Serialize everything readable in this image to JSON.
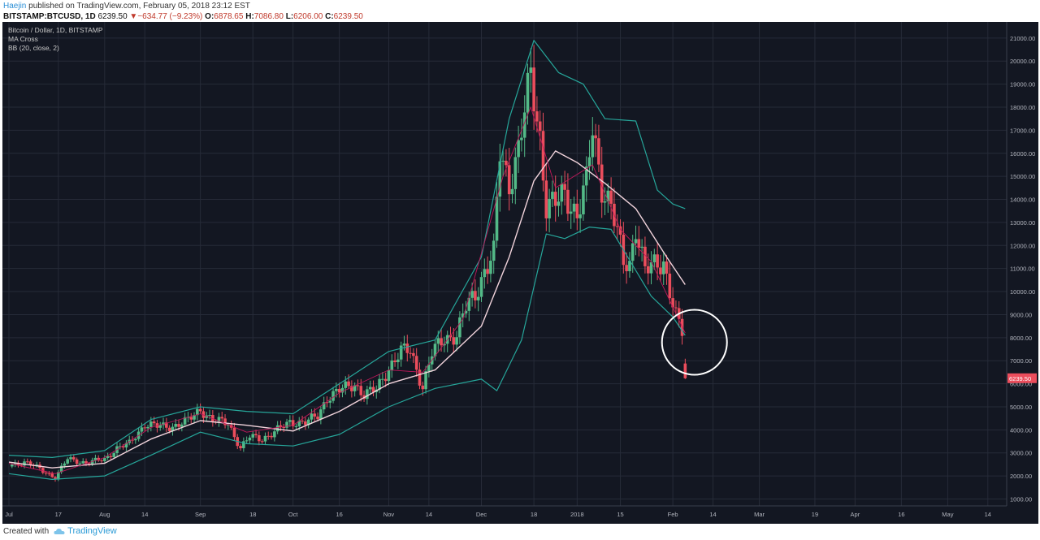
{
  "header": {
    "author": "Haejin",
    "published": "published on TradingView.com, February 05, 2018 23:12 EST",
    "symbol": "BITSTAMP:BTCUSD, 1D",
    "last": "6239.50",
    "change": "−634.77 (−9.23%)",
    "o_label": "O:",
    "o_value": "6878.65",
    "h_label": "H:",
    "h_value": "7086.80",
    "l_label": "L:",
    "l_value": "6206.00",
    "c_label": "C:",
    "c_value": "6239.50"
  },
  "legend": {
    "line1": "Bitcoin / Dollar, 1D, BITSTAMP",
    "line2": "MA Cross",
    "line3": "BB (20, close, 2)"
  },
  "footer": {
    "created_with": "Created with",
    "brand": "TradingView"
  },
  "colors": {
    "bg": "#131722",
    "up": "#53b987",
    "down": "#eb4d5c",
    "bb": "#26a69a",
    "ma_slow": "#f2d4dc",
    "ma_fast": "#c2185b",
    "grid": "#262b38",
    "axis_text": "#b2b5be",
    "price_tag": "#eb4d5c",
    "circle": "#ffffff"
  },
  "chart_data": {
    "type": "candlestick",
    "ylim": [
      700,
      21700
    ],
    "y_ticks": [
      1000,
      2000,
      3000,
      4000,
      5000,
      6000,
      7000,
      8000,
      9000,
      10000,
      11000,
      12000,
      13000,
      14000,
      15000,
      16000,
      17000,
      18000,
      19000,
      20000,
      21000
    ],
    "y_tick_labels": [
      "1000.00",
      "2000.00",
      "3000.00",
      "4000.00",
      "5000.00",
      "6000.00",
      "7000.00",
      "8000.00",
      "9000.00",
      "10000.00",
      "11000.00",
      "12000.00",
      "13000.00",
      "14000.00",
      "15000.00",
      "16000.00",
      "17000.00",
      "18000.00",
      "19000.00",
      "20000.00",
      "21000.00"
    ],
    "x_range": [
      "2017-07-01",
      "2018-05-18"
    ],
    "x_ticks": [
      {
        "date": "2017-07-01",
        "label": "Jul"
      },
      {
        "date": "2017-07-17",
        "label": "17"
      },
      {
        "date": "2017-08-01",
        "label": "Aug"
      },
      {
        "date": "2017-08-14",
        "label": "14"
      },
      {
        "date": "2017-09-01",
        "label": "Sep"
      },
      {
        "date": "2017-09-18",
        "label": "18"
      },
      {
        "date": "2017-10-01",
        "label": "Oct"
      },
      {
        "date": "2017-10-16",
        "label": "16"
      },
      {
        "date": "2017-11-01",
        "label": "Nov"
      },
      {
        "date": "2017-11-14",
        "label": "14"
      },
      {
        "date": "2017-12-01",
        "label": "Dec"
      },
      {
        "date": "2017-12-18",
        "label": "18"
      },
      {
        "date": "2018-01-01",
        "label": "2018"
      },
      {
        "date": "2018-01-15",
        "label": "15"
      },
      {
        "date": "2018-02-01",
        "label": "Feb"
      },
      {
        "date": "2018-02-14",
        "label": "14"
      },
      {
        "date": "2018-03-01",
        "label": "Mar"
      },
      {
        "date": "2018-03-19",
        "label": "19"
      },
      {
        "date": "2018-04-01",
        "label": "Apr"
      },
      {
        "date": "2018-04-16",
        "label": "16"
      },
      {
        "date": "2018-05-01",
        "label": "May"
      },
      {
        "date": "2018-05-14",
        "label": "14"
      }
    ],
    "close_series": [
      {
        "date": "2017-07-01",
        "close": 2480
      },
      {
        "date": "2017-07-06",
        "close": 2600
      },
      {
        "date": "2017-07-10",
        "close": 2380
      },
      {
        "date": "2017-07-16",
        "close": 1920
      },
      {
        "date": "2017-07-20",
        "close": 2750
      },
      {
        "date": "2017-07-26",
        "close": 2560
      },
      {
        "date": "2017-08-01",
        "close": 2730
      },
      {
        "date": "2017-08-05",
        "close": 3200
      },
      {
        "date": "2017-08-09",
        "close": 3400
      },
      {
        "date": "2017-08-14",
        "close": 4250
      },
      {
        "date": "2017-08-18",
        "close": 4150
      },
      {
        "date": "2017-08-23",
        "close": 4150
      },
      {
        "date": "2017-08-28",
        "close": 4400
      },
      {
        "date": "2017-09-01",
        "close": 4900
      },
      {
        "date": "2017-09-05",
        "close": 4400
      },
      {
        "date": "2017-09-10",
        "close": 4300
      },
      {
        "date": "2017-09-14",
        "close": 3200
      },
      {
        "date": "2017-09-17",
        "close": 3700
      },
      {
        "date": "2017-09-21",
        "close": 3620
      },
      {
        "date": "2017-09-25",
        "close": 3900
      },
      {
        "date": "2017-09-30",
        "close": 4340
      },
      {
        "date": "2017-10-05",
        "close": 4320
      },
      {
        "date": "2017-10-09",
        "close": 4600
      },
      {
        "date": "2017-10-12",
        "close": 5400
      },
      {
        "date": "2017-10-16",
        "close": 5700
      },
      {
        "date": "2017-10-21",
        "close": 5990
      },
      {
        "date": "2017-10-24",
        "close": 5520
      },
      {
        "date": "2017-10-28",
        "close": 5750
      },
      {
        "date": "2017-11-01",
        "close": 6700
      },
      {
        "date": "2017-11-05",
        "close": 7380
      },
      {
        "date": "2017-11-08",
        "close": 7450
      },
      {
        "date": "2017-11-12",
        "close": 5860
      },
      {
        "date": "2017-11-15",
        "close": 7300
      },
      {
        "date": "2017-11-19",
        "close": 8000
      },
      {
        "date": "2017-11-23",
        "close": 8100
      },
      {
        "date": "2017-11-26",
        "close": 9300
      },
      {
        "date": "2017-11-29",
        "close": 9900
      },
      {
        "date": "2017-12-02",
        "close": 10900
      },
      {
        "date": "2017-12-05",
        "close": 11600
      },
      {
        "date": "2017-12-07",
        "close": 16000
      },
      {
        "date": "2017-12-10",
        "close": 14700
      },
      {
        "date": "2017-12-13",
        "close": 16200
      },
      {
        "date": "2017-12-17",
        "close": 19300
      },
      {
        "date": "2017-12-20",
        "close": 16700
      },
      {
        "date": "2017-12-22",
        "close": 13800
      },
      {
        "date": "2017-12-25",
        "close": 13800
      },
      {
        "date": "2017-12-28",
        "close": 14200
      },
      {
        "date": "2018-01-01",
        "close": 13400
      },
      {
        "date": "2018-01-04",
        "close": 14700
      },
      {
        "date": "2018-01-06",
        "close": 17000
      },
      {
        "date": "2018-01-09",
        "close": 14600
      },
      {
        "date": "2018-01-12",
        "close": 13800
      },
      {
        "date": "2018-01-16",
        "close": 11200
      },
      {
        "date": "2018-01-18",
        "close": 11200
      },
      {
        "date": "2018-01-20",
        "close": 12900
      },
      {
        "date": "2018-01-23",
        "close": 10900
      },
      {
        "date": "2018-01-26",
        "close": 11100
      },
      {
        "date": "2018-01-29",
        "close": 11300
      },
      {
        "date": "2018-01-31",
        "close": 10100
      },
      {
        "date": "2018-02-02",
        "close": 8900
      },
      {
        "date": "2018-02-04",
        "close": 8200
      },
      {
        "date": "2018-02-05",
        "close": 6239.5
      }
    ],
    "last_candle": {
      "date": "2018-02-05",
      "open": 6878.65,
      "high": 7086.8,
      "low": 6206.0,
      "close": 6239.5
    },
    "bb_upper": [
      {
        "date": "2017-07-01",
        "v": 2900
      },
      {
        "date": "2017-07-15",
        "v": 2800
      },
      {
        "date": "2017-08-01",
        "v": 3100
      },
      {
        "date": "2017-08-16",
        "v": 4450
      },
      {
        "date": "2017-09-01",
        "v": 5000
      },
      {
        "date": "2017-09-16",
        "v": 4800
      },
      {
        "date": "2017-10-01",
        "v": 4700
      },
      {
        "date": "2017-10-16",
        "v": 6000
      },
      {
        "date": "2017-11-01",
        "v": 7400
      },
      {
        "date": "2017-11-16",
        "v": 7900
      },
      {
        "date": "2017-12-01",
        "v": 11500
      },
      {
        "date": "2017-12-10",
        "v": 17500
      },
      {
        "date": "2017-12-18",
        "v": 20900
      },
      {
        "date": "2017-12-26",
        "v": 19500
      },
      {
        "date": "2018-01-03",
        "v": 19000
      },
      {
        "date": "2018-01-10",
        "v": 17500
      },
      {
        "date": "2018-01-20",
        "v": 17400
      },
      {
        "date": "2018-01-27",
        "v": 14400
      },
      {
        "date": "2018-02-01",
        "v": 13800
      },
      {
        "date": "2018-02-05",
        "v": 13600
      }
    ],
    "bb_lower": [
      {
        "date": "2017-07-01",
        "v": 2100
      },
      {
        "date": "2017-07-15",
        "v": 1850
      },
      {
        "date": "2017-08-01",
        "v": 2000
      },
      {
        "date": "2017-08-16",
        "v": 2900
      },
      {
        "date": "2017-09-01",
        "v": 3900
      },
      {
        "date": "2017-09-16",
        "v": 3400
      },
      {
        "date": "2017-10-01",
        "v": 3300
      },
      {
        "date": "2017-10-16",
        "v": 3800
      },
      {
        "date": "2017-11-01",
        "v": 5000
      },
      {
        "date": "2017-11-16",
        "v": 5800
      },
      {
        "date": "2017-12-01",
        "v": 6200
      },
      {
        "date": "2017-12-06",
        "v": 5700
      },
      {
        "date": "2017-12-14",
        "v": 7900
      },
      {
        "date": "2017-12-22",
        "v": 12500
      },
      {
        "date": "2017-12-28",
        "v": 12300
      },
      {
        "date": "2018-01-05",
        "v": 12800
      },
      {
        "date": "2018-01-12",
        "v": 12700
      },
      {
        "date": "2018-01-25",
        "v": 9800
      },
      {
        "date": "2018-02-01",
        "v": 8900
      },
      {
        "date": "2018-02-05",
        "v": 8100
      }
    ],
    "ma_slow": [
      {
        "date": "2017-07-01",
        "v": 2600
      },
      {
        "date": "2017-07-15",
        "v": 2350
      },
      {
        "date": "2017-08-01",
        "v": 2550
      },
      {
        "date": "2017-08-16",
        "v": 3600
      },
      {
        "date": "2017-09-01",
        "v": 4400
      },
      {
        "date": "2017-09-16",
        "v": 4200
      },
      {
        "date": "2017-10-01",
        "v": 3950
      },
      {
        "date": "2017-10-16",
        "v": 4800
      },
      {
        "date": "2017-11-01",
        "v": 6000
      },
      {
        "date": "2017-11-16",
        "v": 6600
      },
      {
        "date": "2017-12-01",
        "v": 8500
      },
      {
        "date": "2017-12-10",
        "v": 11500
      },
      {
        "date": "2017-12-18",
        "v": 14800
      },
      {
        "date": "2017-12-25",
        "v": 16100
      },
      {
        "date": "2018-01-01",
        "v": 15600
      },
      {
        "date": "2018-01-10",
        "v": 14700
      },
      {
        "date": "2018-01-20",
        "v": 13600
      },
      {
        "date": "2018-01-30",
        "v": 11500
      },
      {
        "date": "2018-02-05",
        "v": 10300
      }
    ],
    "ma_fast": [
      {
        "date": "2017-07-01",
        "v": 2550
      },
      {
        "date": "2017-07-16",
        "v": 2100
      },
      {
        "date": "2017-08-01",
        "v": 2800
      },
      {
        "date": "2017-08-16",
        "v": 4100
      },
      {
        "date": "2017-09-01",
        "v": 4700
      },
      {
        "date": "2017-09-16",
        "v": 3900
      },
      {
        "date": "2017-10-01",
        "v": 4200
      },
      {
        "date": "2017-10-16",
        "v": 5600
      },
      {
        "date": "2017-11-01",
        "v": 6600
      },
      {
        "date": "2017-11-12",
        "v": 6500
      },
      {
        "date": "2017-11-25",
        "v": 8800
      },
      {
        "date": "2017-12-08",
        "v": 15000
      },
      {
        "date": "2017-12-17",
        "v": 18000
      },
      {
        "date": "2017-12-25",
        "v": 14500
      },
      {
        "date": "2018-01-06",
        "v": 15500
      },
      {
        "date": "2018-01-15",
        "v": 12700
      },
      {
        "date": "2018-01-25",
        "v": 11300
      },
      {
        "date": "2018-02-05",
        "v": 8200
      }
    ],
    "annotation_circle": {
      "date": "2018-02-08",
      "price": 7800
    },
    "price_tag": "6239.50"
  }
}
